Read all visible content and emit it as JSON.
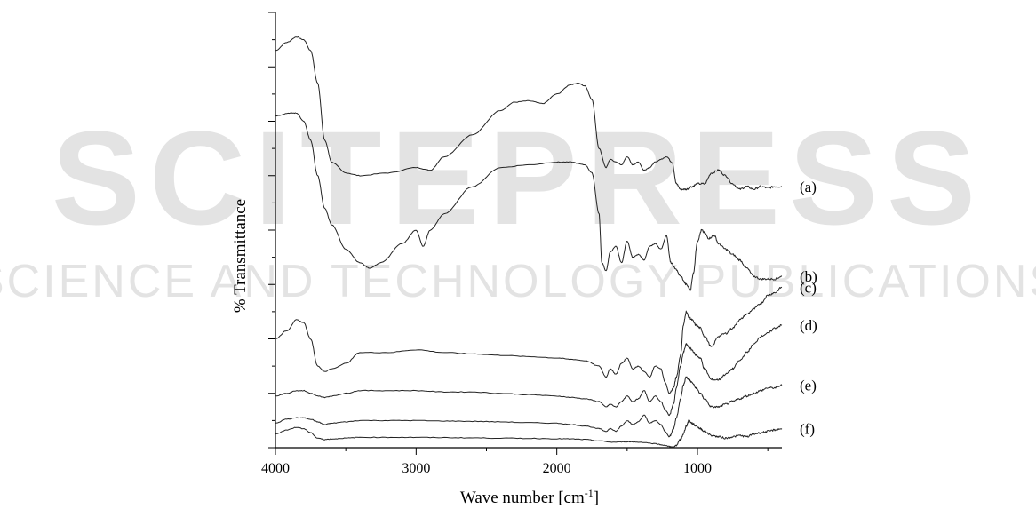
{
  "watermark": {
    "line1": "SCITEPRESS",
    "line2": "SCIENCE AND TECHNOLOGY PUBLICATIONS",
    "color": "#e3e3e3"
  },
  "chart_data": {
    "type": "line",
    "title": "",
    "xlabel": "Wave number [cm",
    "xlabel_sup": "-1",
    "xlabel_end": "]",
    "ylabel": "% Transmittance",
    "xlim": [
      4000,
      400
    ],
    "xticks": [
      4000,
      3000,
      2000,
      1000
    ],
    "x_tick_labels": [
      "4000",
      "3000",
      "2000",
      "1000"
    ],
    "ylim": [
      0,
      16
    ],
    "y_ticks_labeled": false,
    "grid": false,
    "line_color": "#222222",
    "series": [
      {
        "label": "(a)",
        "x": [
          4000,
          3920,
          3850,
          3800,
          3750,
          3700,
          3650,
          3600,
          3500,
          3400,
          3200,
          3000,
          2900,
          2800,
          2600,
          2400,
          2300,
          2200,
          2100,
          2000,
          1900,
          1850,
          1800,
          1750,
          1700,
          1650,
          1620,
          1580,
          1540,
          1500,
          1460,
          1420,
          1380,
          1340,
          1300,
          1260,
          1220,
          1180,
          1150,
          1120,
          1080,
          1040,
          1000,
          950,
          900,
          850,
          800,
          750,
          700,
          650,
          600,
          550,
          500,
          450,
          400
        ],
        "y": [
          14.6,
          14.9,
          15.1,
          15.0,
          14.6,
          13.4,
          11.3,
          10.5,
          10.1,
          10.0,
          10.1,
          10.3,
          10.2,
          10.7,
          11.5,
          12.4,
          12.7,
          12.75,
          12.65,
          13.0,
          13.35,
          13.4,
          13.3,
          12.8,
          11.0,
          10.3,
          10.6,
          10.5,
          10.4,
          10.7,
          10.4,
          10.5,
          10.2,
          10.3,
          10.5,
          10.6,
          10.7,
          10.5,
          9.7,
          9.5,
          9.5,
          9.6,
          9.7,
          9.7,
          10.1,
          10.2,
          10.0,
          9.7,
          9.5,
          9.6,
          9.5,
          9.6,
          9.55,
          9.6,
          9.6
        ]
      },
      {
        "label": "(b)",
        "x": [
          4000,
          3900,
          3850,
          3800,
          3750,
          3700,
          3650,
          3600,
          3500,
          3400,
          3330,
          3250,
          3100,
          3000,
          2950,
          2900,
          2800,
          2600,
          2400,
          2200,
          2000,
          1900,
          1800,
          1750,
          1700,
          1680,
          1650,
          1620,
          1580,
          1540,
          1500,
          1460,
          1420,
          1380,
          1340,
          1300,
          1260,
          1220,
          1190,
          1160,
          1120,
          1080,
          1050,
          1030,
          1000,
          970,
          950,
          920,
          880,
          850,
          800,
          750,
          700,
          650,
          600,
          550,
          500,
          450,
          400
        ],
        "y": [
          12.2,
          12.3,
          12.3,
          12.0,
          11.3,
          10.0,
          8.8,
          8.2,
          7.3,
          6.8,
          6.6,
          6.8,
          7.5,
          8.0,
          7.4,
          8.0,
          8.6,
          9.6,
          10.3,
          10.4,
          10.5,
          10.5,
          10.4,
          10.1,
          8.6,
          6.8,
          6.5,
          7.2,
          7.4,
          6.8,
          7.6,
          7.0,
          7.1,
          6.9,
          7.4,
          7.5,
          7.3,
          7.8,
          6.8,
          6.6,
          6.3,
          6.0,
          5.8,
          6.4,
          7.6,
          8.0,
          7.9,
          7.7,
          7.8,
          7.5,
          7.3,
          7.1,
          6.9,
          6.6,
          6.3,
          6.2,
          6.2,
          6.2,
          6.3
        ]
      },
      {
        "label": "(c)",
        "x": [
          4000,
          3920,
          3850,
          3800,
          3750,
          3700,
          3650,
          3600,
          3500,
          3400,
          3200,
          3000,
          2800,
          2600,
          2400,
          2200,
          2000,
          1900,
          1800,
          1700,
          1650,
          1620,
          1580,
          1540,
          1500,
          1460,
          1420,
          1380,
          1340,
          1300,
          1260,
          1230,
          1200,
          1170,
          1150,
          1120,
          1100,
          1080,
          1060,
          1040,
          1010,
          980,
          950,
          900,
          850,
          800,
          750,
          700,
          650,
          600,
          550,
          500,
          450,
          400
        ],
        "y": [
          4.0,
          4.3,
          4.7,
          4.6,
          4.0,
          3.0,
          2.8,
          2.9,
          3.1,
          3.5,
          3.5,
          3.6,
          3.5,
          3.45,
          3.4,
          3.35,
          3.3,
          3.25,
          3.2,
          3.0,
          2.6,
          2.9,
          2.7,
          3.1,
          3.3,
          2.9,
          3.0,
          2.8,
          2.6,
          3.0,
          2.9,
          2.4,
          2.0,
          2.2,
          2.6,
          3.4,
          4.5,
          5.0,
          4.8,
          4.7,
          4.5,
          4.4,
          4.1,
          3.7,
          4.1,
          4.2,
          4.4,
          4.7,
          4.9,
          5.1,
          5.3,
          5.6,
          5.7,
          5.9
        ]
      },
      {
        "label": "(d)",
        "x": [
          4000,
          3920,
          3850,
          3800,
          3750,
          3700,
          3650,
          3600,
          3500,
          3400,
          3200,
          3000,
          2800,
          2600,
          2400,
          2200,
          2000,
          1900,
          1800,
          1700,
          1650,
          1620,
          1580,
          1540,
          1500,
          1460,
          1420,
          1380,
          1340,
          1300,
          1260,
          1230,
          1200,
          1170,
          1150,
          1120,
          1100,
          1080,
          1060,
          1040,
          1010,
          980,
          950,
          900,
          850,
          800,
          750,
          700,
          650,
          600,
          550,
          500,
          450,
          400
        ],
        "y": [
          1.9,
          2.0,
          2.1,
          2.1,
          2.0,
          1.9,
          1.85,
          1.9,
          2.0,
          2.1,
          2.1,
          2.1,
          2.05,
          2.05,
          2.0,
          1.95,
          1.9,
          1.85,
          1.8,
          1.7,
          1.5,
          1.6,
          1.5,
          1.7,
          1.9,
          1.7,
          1.8,
          2.1,
          1.7,
          1.9,
          1.7,
          1.4,
          1.2,
          1.6,
          2.2,
          3.0,
          3.5,
          3.8,
          3.7,
          3.6,
          3.4,
          3.3,
          2.9,
          2.5,
          2.5,
          2.7,
          2.9,
          3.2,
          3.5,
          3.8,
          4.1,
          4.2,
          4.4,
          4.5
        ]
      },
      {
        "label": "(e)",
        "x": [
          4000,
          3920,
          3850,
          3800,
          3750,
          3700,
          3650,
          3600,
          3500,
          3400,
          3200,
          3000,
          2800,
          2600,
          2400,
          2200,
          2000,
          1900,
          1800,
          1700,
          1650,
          1620,
          1580,
          1540,
          1500,
          1460,
          1420,
          1380,
          1340,
          1300,
          1260,
          1230,
          1200,
          1170,
          1150,
          1120,
          1100,
          1080,
          1060,
          1040,
          1010,
          980,
          950,
          900,
          850,
          800,
          750,
          700,
          650,
          600,
          550,
          500,
          450,
          400
        ],
        "y": [
          0.9,
          1.05,
          1.1,
          1.1,
          1.05,
          0.95,
          0.85,
          0.9,
          0.95,
          1.0,
          1.0,
          1.0,
          0.98,
          0.97,
          0.95,
          0.92,
          0.9,
          0.85,
          0.8,
          0.7,
          0.6,
          0.7,
          0.6,
          0.8,
          1.0,
          0.85,
          0.95,
          1.2,
          0.9,
          1.0,
          0.85,
          0.6,
          0.4,
          0.7,
          1.1,
          1.8,
          2.3,
          2.6,
          2.5,
          2.4,
          2.2,
          2.0,
          1.8,
          1.5,
          1.5,
          1.6,
          1.7,
          1.8,
          1.9,
          2.0,
          2.1,
          2.2,
          2.2,
          2.3
        ]
      },
      {
        "label": "(f)",
        "x": [
          4000,
          3920,
          3850,
          3800,
          3750,
          3700,
          3650,
          3600,
          3500,
          3400,
          3200,
          3000,
          2800,
          2600,
          2400,
          2200,
          2000,
          1900,
          1800,
          1700,
          1600,
          1500,
          1400,
          1300,
          1250,
          1200,
          1170,
          1150,
          1120,
          1100,
          1080,
          1060,
          1040,
          1010,
          980,
          950,
          900,
          850,
          800,
          750,
          700,
          650,
          600,
          550,
          500,
          450,
          400
        ],
        "y": [
          0.5,
          0.65,
          0.75,
          0.7,
          0.55,
          0.35,
          0.3,
          0.32,
          0.35,
          0.38,
          0.38,
          0.38,
          0.37,
          0.36,
          0.35,
          0.34,
          0.33,
          0.32,
          0.3,
          0.25,
          0.2,
          0.22,
          0.2,
          0.15,
          0.1,
          0.05,
          0.0,
          0.1,
          0.3,
          0.5,
          0.8,
          1.0,
          0.9,
          0.8,
          0.7,
          0.6,
          0.45,
          0.4,
          0.35,
          0.4,
          0.45,
          0.4,
          0.5,
          0.55,
          0.6,
          0.65,
          0.7
        ]
      }
    ]
  }
}
